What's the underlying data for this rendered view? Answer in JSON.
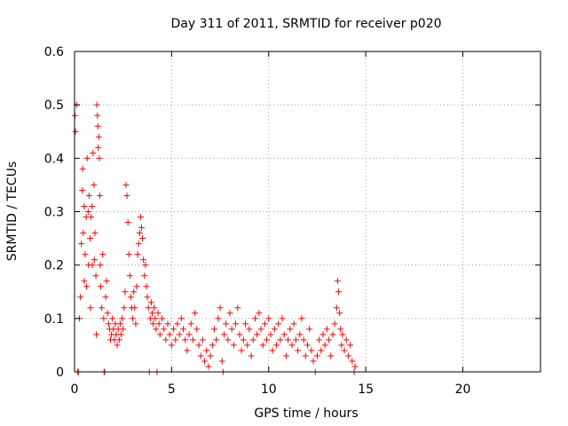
{
  "chart_data": {
    "type": "scatter",
    "title": "Day 311 of 2011, SRMTID for receiver p020",
    "xlabel": "GPS time / hours",
    "ylabel": "SRMTID / TECUs",
    "xlim": [
      0,
      24
    ],
    "ylim": [
      0,
      0.6
    ],
    "xticks": [
      0,
      5,
      10,
      15,
      20
    ],
    "xtick_labels": [
      "0",
      "5",
      "10",
      "15",
      "20"
    ],
    "yticks": [
      0,
      0.1,
      0.2,
      0.3,
      0.4,
      0.5,
      0.6
    ],
    "ytick_labels": [
      "0",
      "0.1",
      "0.2",
      "0.3",
      "0.4",
      "0.5",
      "0.6"
    ],
    "grid": true,
    "marker": "+",
    "color": "#ff0000",
    "series": [
      {
        "name": "p020",
        "points": [
          [
            0.02,
            0.48
          ],
          [
            0.05,
            0.45
          ],
          [
            0.1,
            0.5
          ],
          [
            0.15,
            0.0
          ],
          [
            0.2,
            0.0
          ],
          [
            0.25,
            0.1
          ],
          [
            0.3,
            0.14
          ],
          [
            0.35,
            0.24
          ],
          [
            0.4,
            0.34
          ],
          [
            0.42,
            0.38
          ],
          [
            0.45,
            0.26
          ],
          [
            0.5,
            0.31
          ],
          [
            0.5,
            0.17
          ],
          [
            0.55,
            0.22
          ],
          [
            0.6,
            0.29
          ],
          [
            0.62,
            0.16
          ],
          [
            0.65,
            0.4
          ],
          [
            0.7,
            0.3
          ],
          [
            0.72,
            0.2
          ],
          [
            0.75,
            0.33
          ],
          [
            0.8,
            0.25
          ],
          [
            0.82,
            0.12
          ],
          [
            0.85,
            0.29
          ],
          [
            0.9,
            0.31
          ],
          [
            0.92,
            0.2
          ],
          [
            0.95,
            0.41
          ],
          [
            1.0,
            0.35
          ],
          [
            1.02,
            0.21
          ],
          [
            1.05,
            0.26
          ],
          [
            1.1,
            0.18
          ],
          [
            1.12,
            0.07
          ],
          [
            1.15,
            0.5
          ],
          [
            1.18,
            0.48
          ],
          [
            1.2,
            0.46
          ],
          [
            1.22,
            0.42
          ],
          [
            1.25,
            0.44
          ],
          [
            1.28,
            0.4
          ],
          [
            1.3,
            0.33
          ],
          [
            1.32,
            0.2
          ],
          [
            1.35,
            0.16
          ],
          [
            1.4,
            0.12
          ],
          [
            1.45,
            0.22
          ],
          [
            1.5,
            0.1
          ],
          [
            1.52,
            0.0
          ],
          [
            1.55,
            0.0
          ],
          [
            1.6,
            0.14
          ],
          [
            1.65,
            0.17
          ],
          [
            1.7,
            0.11
          ],
          [
            1.75,
            0.09
          ],
          [
            1.8,
            0.08
          ],
          [
            1.85,
            0.06
          ],
          [
            1.9,
            0.07
          ],
          [
            1.95,
            0.1
          ],
          [
            2.0,
            0.08
          ],
          [
            2.05,
            0.06
          ],
          [
            2.1,
            0.09
          ],
          [
            2.15,
            0.07
          ],
          [
            2.2,
            0.05
          ],
          [
            2.25,
            0.08
          ],
          [
            2.3,
            0.06
          ],
          [
            2.35,
            0.09
          ],
          [
            2.4,
            0.07
          ],
          [
            2.45,
            0.1
          ],
          [
            2.5,
            0.08
          ],
          [
            2.55,
            0.12
          ],
          [
            2.6,
            0.15
          ],
          [
            2.65,
            0.35
          ],
          [
            2.7,
            0.33
          ],
          [
            2.75,
            0.28
          ],
          [
            2.8,
            0.22
          ],
          [
            2.85,
            0.18
          ],
          [
            2.9,
            0.14
          ],
          [
            2.95,
            0.12
          ],
          [
            3.0,
            0.1
          ],
          [
            3.05,
            0.15
          ],
          [
            3.1,
            0.12
          ],
          [
            3.15,
            0.09
          ],
          [
            3.2,
            0.16
          ],
          [
            3.25,
            0.22
          ],
          [
            3.3,
            0.24
          ],
          [
            3.35,
            0.26
          ],
          [
            3.4,
            0.29
          ],
          [
            3.45,
            0.27
          ],
          [
            3.5,
            0.25
          ],
          [
            3.55,
            0.21
          ],
          [
            3.6,
            0.18
          ],
          [
            3.65,
            0.2
          ],
          [
            3.7,
            0.16
          ],
          [
            3.75,
            0.14
          ],
          [
            3.8,
            0.12
          ],
          [
            3.85,
            0.0
          ],
          [
            3.9,
            0.1
          ],
          [
            3.95,
            0.13
          ],
          [
            4.0,
            0.11
          ],
          [
            4.05,
            0.09
          ],
          [
            4.1,
            0.12
          ],
          [
            4.15,
            0.1
          ],
          [
            4.2,
            0.08
          ],
          [
            4.25,
            0.0
          ],
          [
            4.3,
            0.11
          ],
          [
            4.35,
            0.09
          ],
          [
            4.4,
            0.07
          ],
          [
            4.5,
            0.1
          ],
          [
            4.6,
            0.08
          ],
          [
            4.7,
            0.06
          ],
          [
            4.8,
            0.09
          ],
          [
            4.9,
            0.07
          ],
          [
            5.0,
            0.05
          ],
          [
            5.1,
            0.08
          ],
          [
            5.2,
            0.06
          ],
          [
            5.3,
            0.09
          ],
          [
            5.4,
            0.07
          ],
          [
            5.5,
            0.1
          ],
          [
            5.6,
            0.08
          ],
          [
            5.7,
            0.06
          ],
          [
            5.8,
            0.04
          ],
          [
            5.9,
            0.07
          ],
          [
            6.0,
            0.09
          ],
          [
            6.1,
            0.06
          ],
          [
            6.2,
            0.11
          ],
          [
            6.3,
            0.08
          ],
          [
            6.4,
            0.05
          ],
          [
            6.5,
            0.03
          ],
          [
            6.6,
            0.06
          ],
          [
            6.7,
            0.02
          ],
          [
            6.8,
            0.04
          ],
          [
            6.9,
            0.01
          ],
          [
            7.0,
            0.03
          ],
          [
            7.1,
            0.05
          ],
          [
            7.2,
            0.08
          ],
          [
            7.3,
            0.06
          ],
          [
            7.4,
            0.1
          ],
          [
            7.5,
            0.12
          ],
          [
            7.6,
            0.02
          ],
          [
            7.65,
            0.0
          ],
          [
            7.7,
            0.07
          ],
          [
            7.8,
            0.09
          ],
          [
            7.9,
            0.06
          ],
          [
            8.0,
            0.11
          ],
          [
            8.1,
            0.08
          ],
          [
            8.2,
            0.05
          ],
          [
            8.3,
            0.09
          ],
          [
            8.4,
            0.12
          ],
          [
            8.5,
            0.07
          ],
          [
            8.6,
            0.04
          ],
          [
            8.7,
            0.06
          ],
          [
            8.8,
            0.09
          ],
          [
            8.9,
            0.05
          ],
          [
            9.0,
            0.08
          ],
          [
            9.1,
            0.03
          ],
          [
            9.2,
            0.06
          ],
          [
            9.3,
            0.1
          ],
          [
            9.4,
            0.07
          ],
          [
            9.5,
            0.11
          ],
          [
            9.6,
            0.08
          ],
          [
            9.7,
            0.05
          ],
          [
            9.8,
            0.09
          ],
          [
            9.9,
            0.06
          ],
          [
            10.0,
            0.1
          ],
          [
            10.1,
            0.07
          ],
          [
            10.2,
            0.04
          ],
          [
            10.3,
            0.08
          ],
          [
            10.4,
            0.05
          ],
          [
            10.5,
            0.09
          ],
          [
            10.6,
            0.06
          ],
          [
            10.7,
            0.1
          ],
          [
            10.8,
            0.07
          ],
          [
            10.9,
            0.03
          ],
          [
            11.0,
            0.06
          ],
          [
            11.1,
            0.08
          ],
          [
            11.2,
            0.05
          ],
          [
            11.3,
            0.09
          ],
          [
            11.4,
            0.06
          ],
          [
            11.5,
            0.04
          ],
          [
            11.6,
            0.07
          ],
          [
            11.7,
            0.1
          ],
          [
            11.8,
            0.06
          ],
          [
            11.9,
            0.03
          ],
          [
            12.0,
            0.05
          ],
          [
            12.1,
            0.08
          ],
          [
            12.2,
            0.04
          ],
          [
            12.3,
            0.02
          ],
          [
            12.4,
            0.0
          ],
          [
            12.5,
            0.03
          ],
          [
            12.6,
            0.06
          ],
          [
            12.7,
            0.04
          ],
          [
            12.8,
            0.07
          ],
          [
            12.9,
            0.05
          ],
          [
            13.0,
            0.08
          ],
          [
            13.1,
            0.06
          ],
          [
            13.2,
            0.03
          ],
          [
            13.3,
            0.07
          ],
          [
            13.4,
            0.09
          ],
          [
            13.5,
            0.12
          ],
          [
            13.55,
            0.17
          ],
          [
            13.6,
            0.15
          ],
          [
            13.65,
            0.11
          ],
          [
            13.7,
            0.08
          ],
          [
            13.75,
            0.05
          ],
          [
            13.8,
            0.07
          ],
          [
            13.9,
            0.04
          ],
          [
            14.0,
            0.06
          ],
          [
            14.1,
            0.03
          ],
          [
            14.2,
            0.05
          ],
          [
            14.3,
            0.02
          ],
          [
            14.4,
            0.0
          ],
          [
            14.45,
            0.01
          ]
        ]
      }
    ]
  }
}
